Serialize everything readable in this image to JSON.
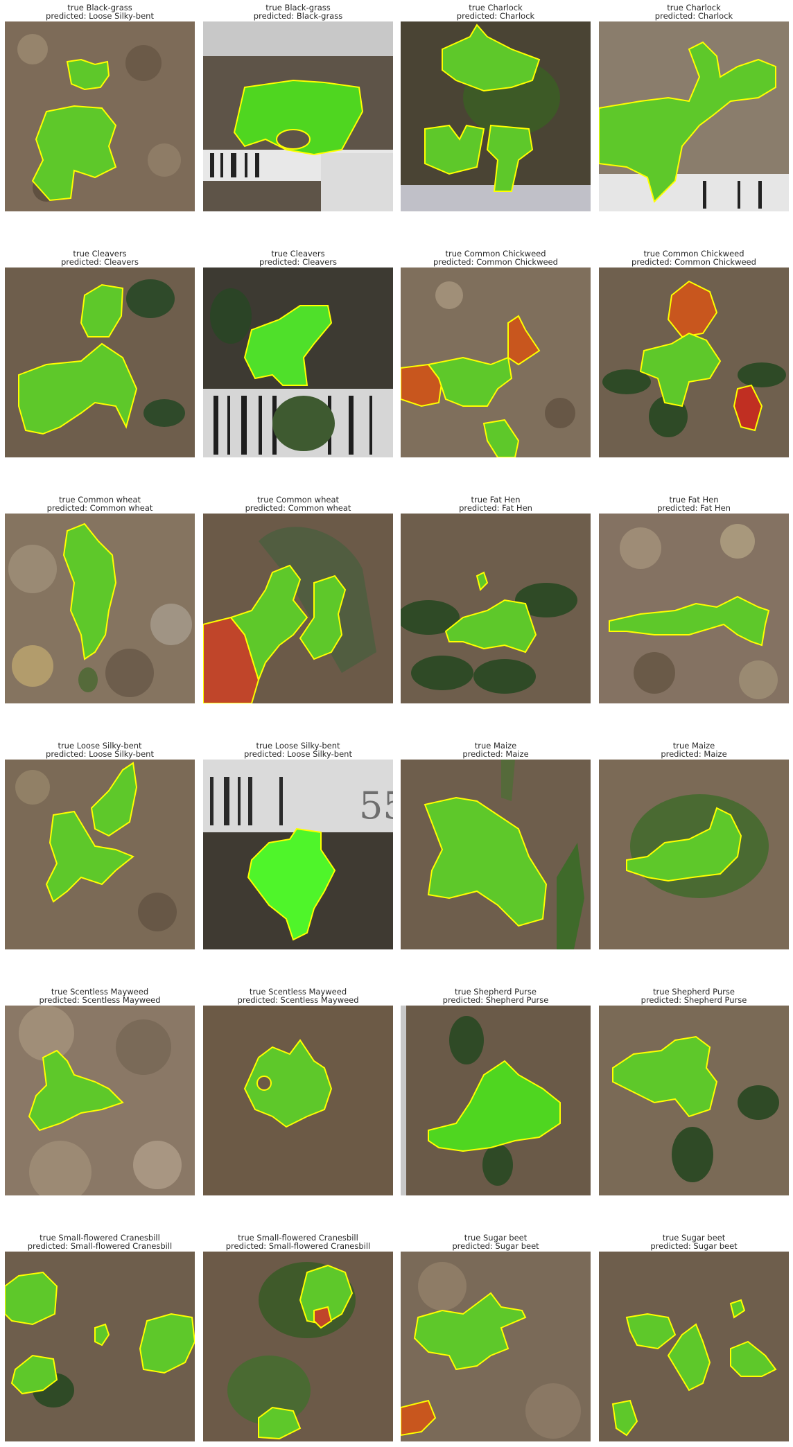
{
  "figure": {
    "panels": [
      {
        "true_label": "true Black-grass",
        "predicted_label": "predicted: Loose Silky-bent"
      },
      {
        "true_label": "true Black-grass",
        "predicted_label": "predicted: Black-grass"
      },
      {
        "true_label": "true Charlock",
        "predicted_label": "predicted: Charlock"
      },
      {
        "true_label": "true Charlock",
        "predicted_label": "predicted: Charlock"
      },
      {
        "true_label": "true Cleavers",
        "predicted_label": "predicted: Cleavers"
      },
      {
        "true_label": "true Cleavers",
        "predicted_label": "predicted: Cleavers"
      },
      {
        "true_label": "true Common Chickweed",
        "predicted_label": "predicted: Common Chickweed"
      },
      {
        "true_label": "true Common Chickweed",
        "predicted_label": "predicted: Common Chickweed"
      },
      {
        "true_label": "true Common wheat",
        "predicted_label": "predicted: Common wheat"
      },
      {
        "true_label": "true Common wheat",
        "predicted_label": "predicted: Common wheat"
      },
      {
        "true_label": "true Fat Hen",
        "predicted_label": "predicted: Fat Hen"
      },
      {
        "true_label": "true Fat Hen",
        "predicted_label": "predicted: Fat Hen"
      },
      {
        "true_label": "true Loose Silky-bent",
        "predicted_label": "predicted: Loose Silky-bent"
      },
      {
        "true_label": "true Loose Silky-bent",
        "predicted_label": "predicted: Loose Silky-bent"
      },
      {
        "true_label": "true Maize",
        "predicted_label": "predicted: Maize"
      },
      {
        "true_label": "true Maize",
        "predicted_label": "predicted: Maize"
      },
      {
        "true_label": "true Scentless Mayweed",
        "predicted_label": "predicted: Scentless Mayweed"
      },
      {
        "true_label": "true Scentless Mayweed",
        "predicted_label": "predicted: Scentless Mayweed"
      },
      {
        "true_label": "true Shepherd Purse",
        "predicted_label": "predicted: Shepherd Purse"
      },
      {
        "true_label": "true Shepherd Purse",
        "predicted_label": "predicted: Shepherd Purse"
      },
      {
        "true_label": "true Small-flowered Cranesbill",
        "predicted_label": "predicted: Small-flowered Cranesbill"
      },
      {
        "true_label": "true Small-flowered Cranesbill",
        "predicted_label": "predicted: Small-flowered Cranesbill"
      },
      {
        "true_label": "true Sugar beet",
        "predicted_label": "predicted: Sugar beet"
      },
      {
        "true_label": "true Sugar beet",
        "predicted_label": "predicted: Sugar beet"
      }
    ],
    "colors": {
      "segment_fill": "#4fd620",
      "segment_outline": "#ffff00",
      "misclassified_fill": "#d2421e",
      "soil": "#7a6a55"
    }
  }
}
